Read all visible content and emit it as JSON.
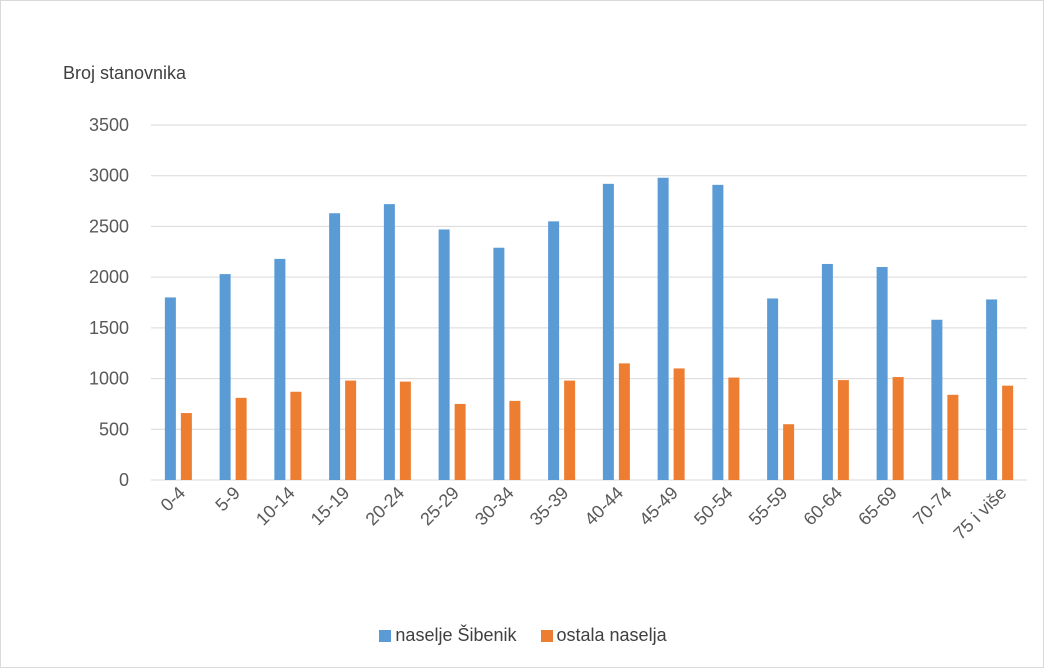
{
  "chart_data": {
    "type": "bar",
    "title": "",
    "xlabel": "",
    "ylabel": "Broj stanovnika",
    "ylim": [
      0,
      3500
    ],
    "yticks": [
      0,
      500,
      1000,
      1500,
      2000,
      2500,
      3000,
      3500
    ],
    "grid": true,
    "legend_position": "bottom",
    "categories": [
      "0-4",
      "5-9",
      "10-14",
      "15-19",
      "20-24",
      "25-29",
      "30-34",
      "35-39",
      "40-44",
      "45-49",
      "50-54",
      "55-59",
      "60-64",
      "65-69",
      "70-74",
      "75 i više"
    ],
    "series": [
      {
        "name": "naselje Šibenik",
        "color": "#5b9bd5",
        "values": [
          1800,
          2030,
          2180,
          2630,
          2720,
          2470,
          2290,
          2550,
          2920,
          2980,
          2910,
          1790,
          2130,
          2100,
          1580,
          1780
        ]
      },
      {
        "name": "ostala naselja",
        "color": "#ed7d31",
        "values": [
          660,
          810,
          870,
          980,
          970,
          750,
          780,
          980,
          1150,
          1100,
          1010,
          550,
          985,
          1015,
          840,
          930
        ]
      }
    ]
  }
}
